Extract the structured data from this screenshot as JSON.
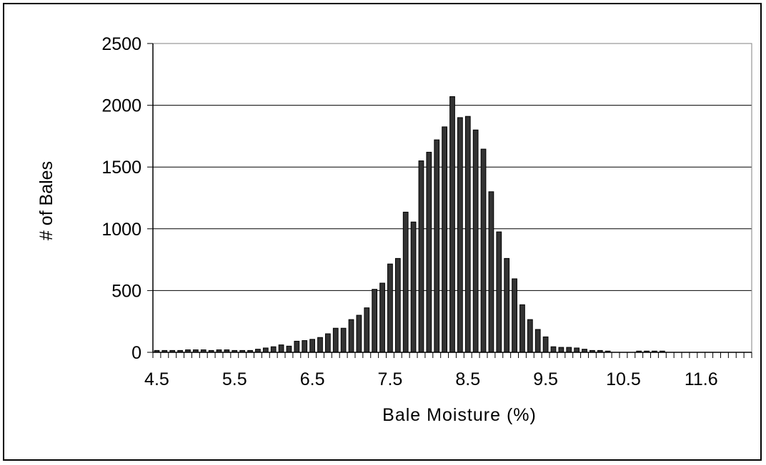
{
  "chart_data": {
    "type": "bar",
    "title": "",
    "xlabel": "Bale Moisture (%)",
    "ylabel": "# of Bales",
    "ylim": [
      0,
      2500
    ],
    "yticks": [
      0,
      500,
      1000,
      1500,
      2000,
      2500
    ],
    "x_tick_labels": [
      "4.5",
      "5.5",
      "6.5",
      "7.5",
      "8.5",
      "9.5",
      "10.5",
      "11.6"
    ],
    "x_tick_label_every": 10,
    "grid": "horizontal",
    "legend": "none",
    "bar_color": "#333333",
    "categories": [
      "4.5",
      "4.6",
      "4.7",
      "4.8",
      "4.9",
      "5.0",
      "5.1",
      "5.2",
      "5.3",
      "5.4",
      "5.5",
      "5.6",
      "5.7",
      "5.8",
      "5.9",
      "6.0",
      "6.1",
      "6.2",
      "6.3",
      "6.4",
      "6.5",
      "6.6",
      "6.7",
      "6.8",
      "6.9",
      "7.0",
      "7.1",
      "7.2",
      "7.3",
      "7.4",
      "7.5",
      "7.6",
      "7.7",
      "7.8",
      "7.9",
      "8.0",
      "8.1",
      "8.2",
      "8.3",
      "8.4",
      "8.5",
      "8.6",
      "8.7",
      "8.8",
      "8.9",
      "9.0",
      "9.1",
      "9.2",
      "9.3",
      "9.4",
      "9.5",
      "9.6",
      "9.7",
      "9.8",
      "9.9",
      "10.0",
      "10.1",
      "10.2",
      "10.3",
      "10.4",
      "10.5",
      "10.6",
      "10.7",
      "10.8",
      "10.9",
      "11.0",
      "11.1",
      "11.2",
      "11.3",
      "11.4",
      "11.6",
      "11.7",
      "11.8",
      "11.9",
      "12.0",
      "12.1",
      "12.2"
    ],
    "values": [
      15,
      15,
      15,
      15,
      20,
      20,
      20,
      15,
      20,
      20,
      15,
      15,
      15,
      25,
      35,
      45,
      60,
      50,
      90,
      95,
      105,
      120,
      150,
      195,
      195,
      265,
      300,
      360,
      510,
      560,
      715,
      760,
      1135,
      1055,
      1550,
      1620,
      1720,
      1825,
      2070,
      1900,
      1910,
      1800,
      1645,
      1300,
      975,
      760,
      595,
      385,
      265,
      185,
      125,
      45,
      40,
      40,
      35,
      25,
      15,
      15,
      10,
      0,
      0,
      0,
      10,
      10,
      10,
      10,
      0,
      0,
      0,
      0,
      0,
      0,
      0,
      0,
      0,
      0,
      0
    ]
  }
}
